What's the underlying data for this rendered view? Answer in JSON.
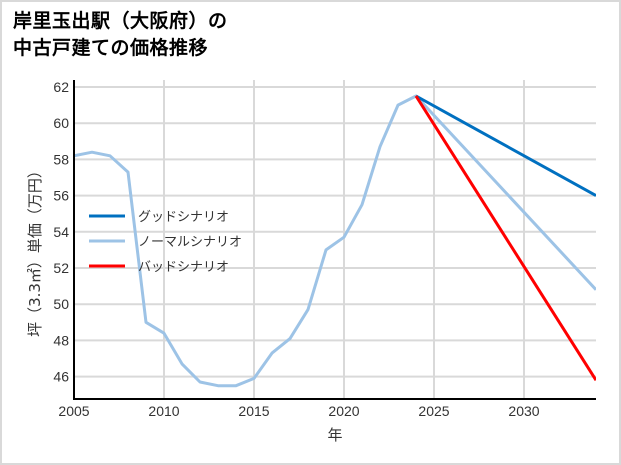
{
  "title": {
    "line1": "岸里玉出駅（大阪府）の",
    "line2": "中古戸建ての価格推移"
  },
  "axes": {
    "xlabel": "年",
    "ylabel": "坪（3.3㎡）単価（万円）",
    "xticks": [
      "2005",
      "2010",
      "2015",
      "2020",
      "2025",
      "2030"
    ],
    "yticks": [
      "46",
      "48",
      "50",
      "52",
      "54",
      "56",
      "58",
      "60",
      "62"
    ]
  },
  "legend": [
    {
      "label": "グッドシナリオ",
      "color": "#0070C0"
    },
    {
      "label": "ノーマルシナリオ",
      "color": "#9DC3E6"
    },
    {
      "label": "バッドシナリオ",
      "color": "#FF0000"
    }
  ],
  "chart_data": {
    "type": "line",
    "title": "岸里玉出駅（大阪府）の中古戸建ての価格推移",
    "xlabel": "年",
    "ylabel": "坪（3.3㎡）単価（万円）",
    "xlim": [
      2005,
      2034
    ],
    "ylim": [
      44.8,
      62.2
    ],
    "grid": true,
    "legend_position": "left-center inside",
    "series": [
      {
        "name": "グッドシナリオ",
        "color": "#0070C0",
        "x": [
          2024,
          2034
        ],
        "values": [
          61.5,
          56.0
        ]
      },
      {
        "name": "ノーマルシナリオ",
        "color": "#9DC3E6",
        "x": [
          2005,
          2006,
          2007,
          2008,
          2009,
          2010,
          2011,
          2012,
          2013,
          2014,
          2015,
          2016,
          2017,
          2018,
          2019,
          2020,
          2021,
          2022,
          2023,
          2024,
          2034
        ],
        "values": [
          58.2,
          58.4,
          58.2,
          57.3,
          49.0,
          48.4,
          46.7,
          45.7,
          45.5,
          45.5,
          45.9,
          47.3,
          48.1,
          49.7,
          53.0,
          53.7,
          55.5,
          58.7,
          61.0,
          61.5,
          50.8
        ]
      },
      {
        "name": "バッドシナリオ",
        "color": "#FF0000",
        "x": [
          2024,
          2034
        ],
        "values": [
          61.5,
          45.8
        ]
      }
    ]
  }
}
